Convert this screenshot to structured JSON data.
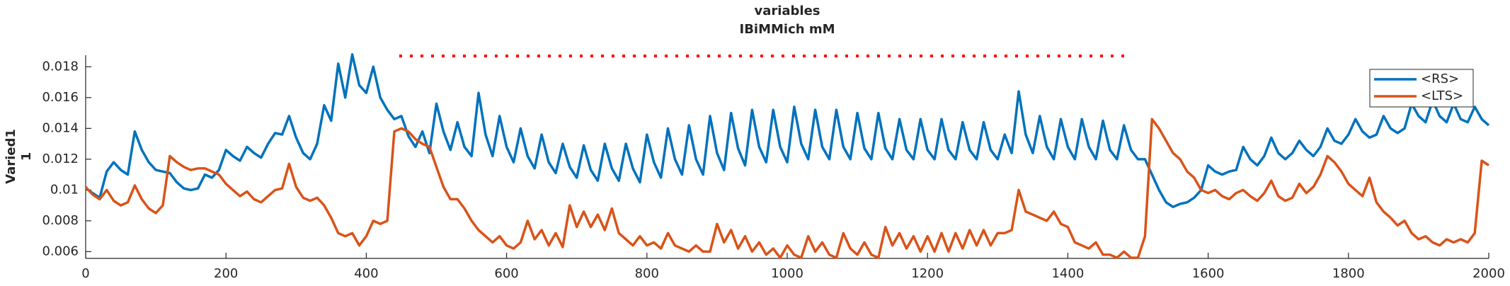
{
  "chart_data": {
    "type": "line",
    "title": "variables",
    "subtitle": "IBiMMich mM",
    "ylabel": [
      "Varied1",
      "1"
    ],
    "xlim": [
      0,
      2000
    ],
    "xticks": [
      0,
      200,
      400,
      600,
      800,
      1000,
      1200,
      1400,
      1600,
      1800,
      2000
    ],
    "ylim": [
      0.00556,
      0.01875
    ],
    "yticks": [
      0.006,
      0.008,
      0.01,
      0.012,
      0.014,
      0.016,
      0.018
    ],
    "legend": "northeast",
    "dotted_line": {
      "x": [
        447,
        1481
      ],
      "y": 0.0187,
      "color": "#ff0000"
    },
    "x": [
      0,
      10,
      20,
      30,
      40,
      50,
      60,
      70,
      80,
      90,
      100,
      110,
      120,
      130,
      140,
      150,
      160,
      170,
      180,
      190,
      200,
      210,
      220,
      230,
      240,
      250,
      260,
      270,
      280,
      290,
      300,
      310,
      320,
      330,
      340,
      350,
      360,
      370,
      380,
      390,
      400,
      410,
      420,
      430,
      440,
      450,
      460,
      470,
      480,
      490,
      500,
      510,
      520,
      530,
      540,
      550,
      560,
      570,
      580,
      590,
      600,
      610,
      620,
      630,
      640,
      650,
      660,
      670,
      680,
      690,
      700,
      710,
      720,
      730,
      740,
      750,
      760,
      770,
      780,
      790,
      800,
      810,
      820,
      830,
      840,
      850,
      860,
      870,
      880,
      890,
      900,
      910,
      920,
      930,
      940,
      950,
      960,
      970,
      980,
      990,
      1000,
      1010,
      1020,
      1030,
      1040,
      1050,
      1060,
      1070,
      1080,
      1090,
      1100,
      1110,
      1120,
      1130,
      1140,
      1150,
      1160,
      1170,
      1180,
      1190,
      1200,
      1210,
      1220,
      1230,
      1240,
      1250,
      1260,
      1270,
      1280,
      1290,
      1300,
      1310,
      1320,
      1330,
      1340,
      1350,
      1360,
      1370,
      1380,
      1390,
      1400,
      1410,
      1420,
      1430,
      1440,
      1450,
      1460,
      1470,
      1480,
      1490,
      1500,
      1510,
      1520,
      1530,
      1540,
      1550,
      1560,
      1570,
      1580,
      1590,
      1600,
      1610,
      1620,
      1630,
      1640,
      1650,
      1660,
      1670,
      1680,
      1690,
      1700,
      1710,
      1720,
      1730,
      1740,
      1750,
      1760,
      1770,
      1780,
      1790,
      1800,
      1810,
      1820,
      1830,
      1840,
      1850,
      1860,
      1870,
      1880,
      1890,
      1900,
      1910,
      1920,
      1930,
      1940,
      1950,
      1960,
      1970,
      1980,
      1990,
      2000
    ],
    "series": [
      {
        "name": "<RS>",
        "color": "#0072bd",
        "values": [
          0.0101,
          0.0098,
          0.0095,
          0.0112,
          0.0118,
          0.0113,
          0.011,
          0.0138,
          0.0126,
          0.0118,
          0.0113,
          0.0112,
          0.0111,
          0.0105,
          0.0101,
          0.01,
          0.0101,
          0.011,
          0.0108,
          0.0113,
          0.0126,
          0.0122,
          0.0119,
          0.0128,
          0.0124,
          0.0121,
          0.013,
          0.0137,
          0.0136,
          0.0148,
          0.0134,
          0.0124,
          0.012,
          0.013,
          0.0155,
          0.0145,
          0.0182,
          0.016,
          0.0188,
          0.0168,
          0.0163,
          0.018,
          0.016,
          0.0152,
          0.0146,
          0.0148,
          0.0135,
          0.0128,
          0.0138,
          0.0124,
          0.0156,
          0.0138,
          0.0126,
          0.0144,
          0.0128,
          0.0122,
          0.0163,
          0.0136,
          0.0122,
          0.0148,
          0.0128,
          0.0118,
          0.014,
          0.0122,
          0.0114,
          0.0136,
          0.0118,
          0.0111,
          0.013,
          0.0115,
          0.0108,
          0.0129,
          0.0113,
          0.0106,
          0.013,
          0.0114,
          0.0106,
          0.013,
          0.0114,
          0.0105,
          0.0136,
          0.0118,
          0.0108,
          0.014,
          0.012,
          0.011,
          0.0142,
          0.012,
          0.011,
          0.0148,
          0.0124,
          0.0113,
          0.015,
          0.0127,
          0.0116,
          0.0152,
          0.0128,
          0.0118,
          0.0152,
          0.0128,
          0.0118,
          0.0154,
          0.013,
          0.012,
          0.0152,
          0.0128,
          0.012,
          0.0152,
          0.0128,
          0.012,
          0.015,
          0.0127,
          0.012,
          0.015,
          0.0127,
          0.012,
          0.0146,
          0.0126,
          0.012,
          0.0146,
          0.0126,
          0.012,
          0.0146,
          0.0126,
          0.012,
          0.0144,
          0.0126,
          0.012,
          0.0144,
          0.0126,
          0.012,
          0.0136,
          0.0124,
          0.0164,
          0.0136,
          0.0124,
          0.0148,
          0.0128,
          0.012,
          0.0146,
          0.0128,
          0.012,
          0.0146,
          0.0128,
          0.012,
          0.0145,
          0.0126,
          0.012,
          0.0142,
          0.0126,
          0.012,
          0.012,
          0.011,
          0.01,
          0.0092,
          0.0089,
          0.0091,
          0.0092,
          0.0095,
          0.01,
          0.0116,
          0.0112,
          0.011,
          0.0112,
          0.0113,
          0.0128,
          0.012,
          0.0116,
          0.0122,
          0.0134,
          0.0124,
          0.012,
          0.0124,
          0.0132,
          0.0126,
          0.0122,
          0.0128,
          0.014,
          0.0132,
          0.013,
          0.0136,
          0.0146,
          0.0138,
          0.0134,
          0.0136,
          0.0148,
          0.014,
          0.0137,
          0.014,
          0.0156,
          0.0148,
          0.0144,
          0.0158,
          0.0148,
          0.0144,
          0.0156,
          0.0146,
          0.0144,
          0.0154,
          0.0146,
          0.0142
        ]
      },
      {
        "name": "<LTS>",
        "color": "#d95319",
        "values": [
          0.0102,
          0.0097,
          0.0094,
          0.01,
          0.0093,
          0.009,
          0.0092,
          0.0103,
          0.0094,
          0.0088,
          0.0085,
          0.009,
          0.0122,
          0.0118,
          0.0115,
          0.0113,
          0.0114,
          0.0114,
          0.0112,
          0.011,
          0.0104,
          0.01,
          0.0096,
          0.0099,
          0.0094,
          0.0092,
          0.0096,
          0.01,
          0.0101,
          0.0117,
          0.0102,
          0.0095,
          0.0093,
          0.0095,
          0.009,
          0.0082,
          0.0072,
          0.007,
          0.0072,
          0.0064,
          0.007,
          0.008,
          0.0078,
          0.008,
          0.0138,
          0.014,
          0.0138,
          0.0133,
          0.013,
          0.0128,
          0.0115,
          0.0102,
          0.0094,
          0.0094,
          0.0088,
          0.008,
          0.0074,
          0.007,
          0.0066,
          0.007,
          0.0064,
          0.0062,
          0.0066,
          0.008,
          0.0068,
          0.0074,
          0.0064,
          0.0072,
          0.0063,
          0.009,
          0.0076,
          0.0086,
          0.0076,
          0.0084,
          0.0074,
          0.0088,
          0.0072,
          0.0068,
          0.0064,
          0.007,
          0.0064,
          0.0066,
          0.0062,
          0.0072,
          0.0064,
          0.0062,
          0.006,
          0.0064,
          0.006,
          0.006,
          0.0078,
          0.0066,
          0.0074,
          0.0062,
          0.007,
          0.006,
          0.0066,
          0.0058,
          0.0062,
          0.0056,
          0.0064,
          0.0058,
          0.0056,
          0.007,
          0.006,
          0.0066,
          0.0058,
          0.0056,
          0.0072,
          0.0062,
          0.0058,
          0.0066,
          0.0058,
          0.0056,
          0.0076,
          0.0064,
          0.0072,
          0.0062,
          0.007,
          0.006,
          0.007,
          0.006,
          0.0072,
          0.006,
          0.0072,
          0.0062,
          0.0074,
          0.0064,
          0.0074,
          0.0064,
          0.0072,
          0.0072,
          0.0074,
          0.01,
          0.0086,
          0.0084,
          0.0082,
          0.008,
          0.0086,
          0.0078,
          0.0076,
          0.0066,
          0.0064,
          0.0062,
          0.0066,
          0.0058,
          0.0058,
          0.0056,
          0.006,
          0.0056,
          0.0056,
          0.007,
          0.0146,
          0.014,
          0.0132,
          0.0124,
          0.012,
          0.0112,
          0.0108,
          0.01,
          0.0098,
          0.01,
          0.0096,
          0.0094,
          0.0098,
          0.01,
          0.0096,
          0.0093,
          0.0098,
          0.0106,
          0.0096,
          0.0093,
          0.0095,
          0.0104,
          0.0098,
          0.0102,
          0.011,
          0.0122,
          0.0118,
          0.0112,
          0.0104,
          0.01,
          0.0096,
          0.0108,
          0.0092,
          0.0086,
          0.0082,
          0.0077,
          0.008,
          0.0072,
          0.0068,
          0.007,
          0.0066,
          0.0064,
          0.0068,
          0.0066,
          0.0068,
          0.0066,
          0.0072,
          0.0119,
          0.0116
        ]
      }
    ]
  }
}
